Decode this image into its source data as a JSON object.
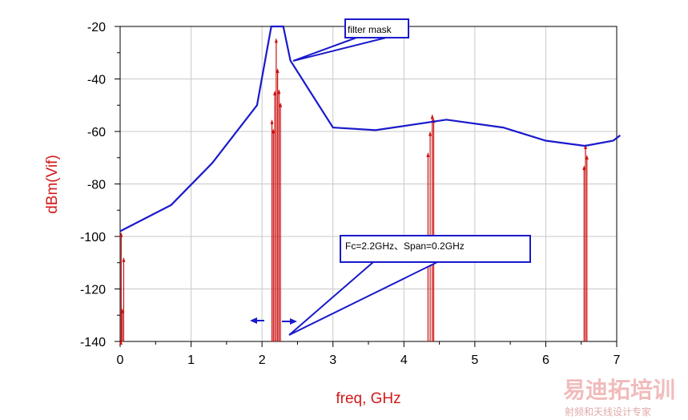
{
  "chart_data": {
    "type": "line",
    "xlabel": "freq, GHz",
    "ylabel": "dBm(Vif)",
    "xlim": [
      0,
      7
    ],
    "ylim": [
      -140,
      -20
    ],
    "x_ticks": [
      "0",
      "1",
      "2",
      "3",
      "4",
      "5",
      "6",
      "7"
    ],
    "y_ticks": [
      "-20",
      "-40",
      "-60",
      "-80",
      "-100",
      "-120",
      "-140"
    ],
    "grid": true,
    "filter_mask": {
      "color": "#1a1acc",
      "x": [
        0.0,
        0.72,
        1.3,
        1.93,
        2.13,
        2.3,
        2.4,
        3.0,
        3.6,
        4.6,
        5.4,
        6.0,
        6.55,
        6.95,
        7.05
      ],
      "y": [
        -98,
        -88,
        -72,
        -50,
        -20,
        -20,
        -33,
        -58.5,
        -59.5,
        -55.5,
        -58.5,
        -63.5,
        -65.5,
        -63.5,
        -61.5
      ]
    },
    "spectral_lines": {
      "color": "#cc1111",
      "lines": [
        {
          "x": 0.01,
          "y": -140
        },
        {
          "x": 0.015,
          "y": -99
        },
        {
          "x": 0.03,
          "y": -128
        },
        {
          "x": 0.05,
          "y": -108.5
        },
        {
          "x": 2.14,
          "y": -56
        },
        {
          "x": 2.16,
          "y": -59.5
        },
        {
          "x": 2.18,
          "y": -45
        },
        {
          "x": 2.2,
          "y": -25
        },
        {
          "x": 2.22,
          "y": -36.5
        },
        {
          "x": 2.24,
          "y": -44.5
        },
        {
          "x": 2.26,
          "y": -49.5
        },
        {
          "x": 4.34,
          "y": -68.5
        },
        {
          "x": 4.37,
          "y": -60.5
        },
        {
          "x": 4.4,
          "y": -54
        },
        {
          "x": 4.42,
          "y": -55.5
        },
        {
          "x": 6.54,
          "y": -73.5
        },
        {
          "x": 6.56,
          "y": -65.5
        },
        {
          "x": 6.58,
          "y": -69.5
        }
      ]
    },
    "annotations": [
      {
        "text": "filter mask"
      },
      {
        "text": "Fc=2.2GHz、Span=0.2GHz"
      }
    ]
  },
  "watermark": {
    "main": "易迪拓培训",
    "sub": "射频和天线设计专家"
  }
}
